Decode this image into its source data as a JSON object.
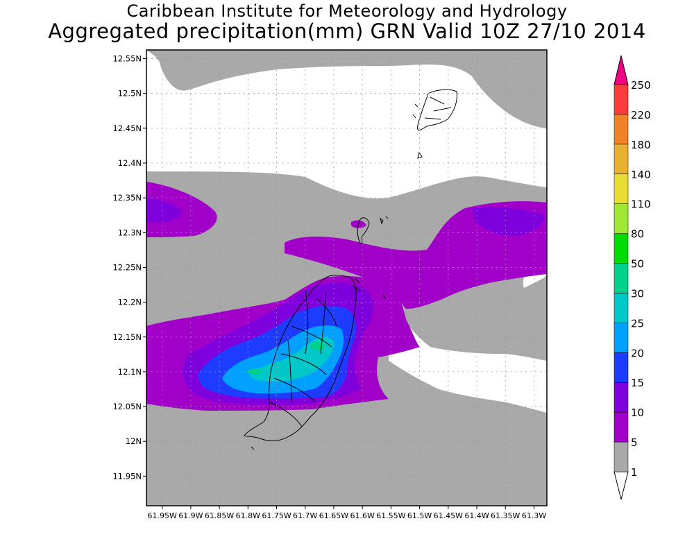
{
  "header": {
    "title": "Caribbean Institute for Meteorology and Hydrology",
    "subtitle": "Aggregated precipitation(mm) GRN Valid 10Z 27/10 2014"
  },
  "map": {
    "lat_ticks": [
      "12.55N",
      "12.5N",
      "12.45N",
      "12.4N",
      "12.35N",
      "12.3N",
      "12.25N",
      "12.2N",
      "12.15N",
      "12.1N",
      "12.05N",
      "12N",
      "11.95N"
    ],
    "lon_ticks": [
      "61.95W",
      "61.9W",
      "61.85W",
      "61.8W",
      "61.75W",
      "61.7W",
      "61.65W",
      "61.6W",
      "61.55W",
      "61.5W",
      "61.45W",
      "61.4W",
      "61.35W",
      "61.3W"
    ],
    "gridlines": true,
    "colors": {
      "c1": "#a9a9a9",
      "c5": "#a000c8",
      "c10": "#7d00dd",
      "c15": "#1e3cff",
      "c20": "#00a0ff",
      "c25": "#00c8c8",
      "c30": "#00d28c"
    }
  },
  "legend": {
    "levels": [
      "1",
      "5",
      "10",
      "15",
      "20",
      "25",
      "30",
      "50",
      "80",
      "110",
      "140",
      "180",
      "220",
      "250"
    ],
    "colors": [
      "#a9a9a9",
      "#a000c8",
      "#7d00dd",
      "#1e3cff",
      "#00a0ff",
      "#00c8c8",
      "#00d28c",
      "#00dc00",
      "#a0e632",
      "#e6dc32",
      "#e6af2d",
      "#f08228",
      "#fa3c3c",
      "#f00082"
    ],
    "arrow_top_color": "#f00082",
    "arrow_bottom_color": "#ffffff"
  }
}
